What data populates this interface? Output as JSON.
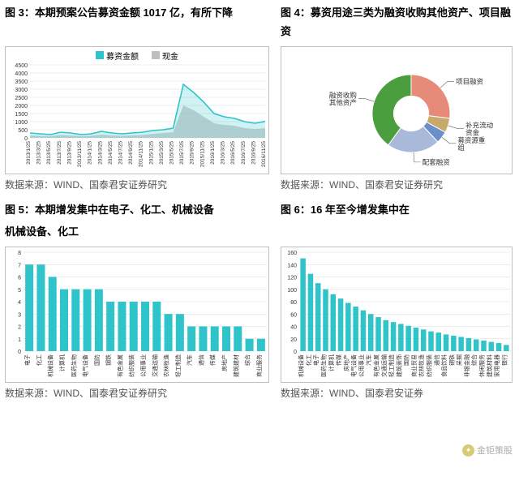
{
  "fig3": {
    "title": "图 3：本期预案公告募资金额 1017 亿，有所下降",
    "legend": [
      {
        "label": "募资金额",
        "color": "#2ec4c9"
      },
      {
        "label": "现金",
        "color": "#bfbfbf"
      }
    ],
    "ylim": [
      0,
      4500
    ],
    "ytick_step": 500,
    "x_labels": [
      "2013/1/25",
      "2013/3/25",
      "2013/5/25",
      "2013/7/25",
      "2013/9/25",
      "2013/11/25",
      "2014/1/25",
      "2014/3/25",
      "2014/5/25",
      "2014/7/25",
      "2014/9/25",
      "2014/11/25",
      "2015/1/25",
      "2015/3/25",
      "2015/5/25",
      "2015/7/25",
      "2015/9/25",
      "2015/11/25",
      "2016/1/25",
      "2016/3/25",
      "2016/5/25",
      "2016/7/25",
      "2016/9/25",
      "2016/11/25"
    ],
    "series_fund": [
      300,
      250,
      200,
      350,
      300,
      200,
      250,
      400,
      300,
      250,
      300,
      350,
      450,
      500,
      600,
      3300,
      2800,
      2200,
      1500,
      1300,
      1200,
      1000,
      900,
      1017
    ],
    "series_cash": [
      150,
      120,
      100,
      180,
      150,
      100,
      130,
      200,
      150,
      130,
      150,
      180,
      250,
      300,
      350,
      2000,
      1700,
      1300,
      900,
      800,
      750,
      600,
      550,
      600
    ],
    "grid_color": "#d9d9d9",
    "line_color_fund": "#2ec4c9",
    "fill_color_cash": "#bfbfbf",
    "source": "数据来源：WIND、国泰君安证券研究"
  },
  "fig4": {
    "title": "图 4：募资用途三类为融资收购其他资产、项目融资",
    "type": "donut",
    "slices": [
      {
        "label": "项目融资",
        "value": 27,
        "color": "#e68a7a"
      },
      {
        "label": "补充流动资金",
        "value": 6,
        "color": "#c7a96b"
      },
      {
        "label": "募资源重组",
        "value": 5,
        "color": "#6b8fc9"
      },
      {
        "label": "配套融资",
        "value": 22,
        "color": "#a8b9d9"
      },
      {
        "label": "融资收购其他资产",
        "value": 40,
        "color": "#4a9e3e"
      }
    ],
    "inner_radius_ratio": 0.45,
    "source": "数据来源：WIND、国泰君安证券研究"
  },
  "fig5": {
    "title": "图 5：本期增发集中在电子、化工、机械设备",
    "title_line2": "机械设备、化工",
    "ylim": [
      0,
      8
    ],
    "ytick_step": 1,
    "bar_color": "#2ec4c9",
    "categories": [
      "电子",
      "化工",
      "机械设备",
      "计算机",
      "医药生物",
      "电气设备",
      "国防",
      "钢铁",
      "有色金属",
      "纺织服装",
      "公用事业",
      "交通运输",
      "农林牧渔",
      "轻工制造",
      "汽车",
      "通信",
      "传媒",
      "房地产",
      "建筑建材",
      "综合",
      "商业服务"
    ],
    "values": [
      7,
      7,
      6,
      5,
      5,
      5,
      5,
      4,
      4,
      4,
      4,
      4,
      3,
      3,
      2,
      2,
      2,
      2,
      2,
      1,
      1
    ],
    "grid_color": "#d9d9d9",
    "source": "数据来源：WIND、国泰君安证券研究"
  },
  "fig6": {
    "title": "图 6：16 年至今增发集中在",
    "title_line2_shared": true,
    "ylim": [
      0,
      160
    ],
    "ytick_step": 20,
    "bar_color": "#2ec4c9",
    "categories": [
      "机械设备",
      "化工",
      "电子",
      "医药生物",
      "计算机",
      "传媒",
      "房地产",
      "电气设备",
      "公用事业",
      "汽车",
      "有色金属",
      "交通运输",
      "轻工制造",
      "建筑装饰",
      "国防",
      "商业贸易",
      "农林牧渔",
      "纺织服装",
      "通信",
      "食品饮料",
      "钢铁",
      "采掘",
      "非银金融",
      "综合",
      "休闲服务",
      "建筑材料",
      "家用电器",
      "银行"
    ],
    "values": [
      150,
      125,
      110,
      100,
      92,
      85,
      78,
      72,
      66,
      60,
      55,
      50,
      47,
      44,
      41,
      38,
      35,
      32,
      30,
      27,
      25,
      23,
      21,
      19,
      17,
      15,
      13,
      10
    ],
    "grid_color": "#d9d9d9",
    "source": "数据来源：WIND、国泰君安证券"
  },
  "watermark": "金钜策股"
}
